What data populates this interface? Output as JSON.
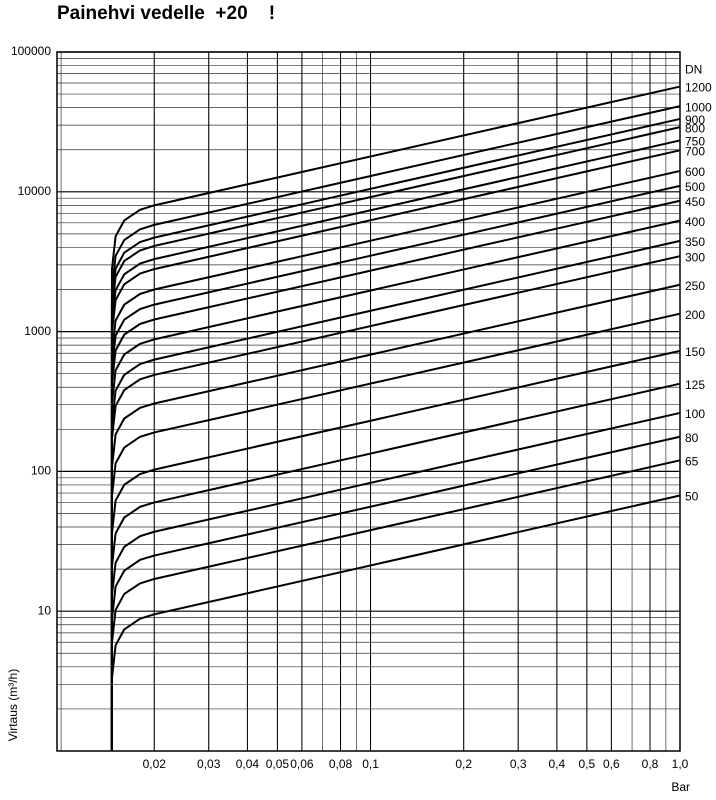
{
  "chart_data": {
    "type": "line",
    "title": "Painehvi vedelle  +20    !",
    "y_label": "Virtaus (m³/h)",
    "x_label": "Bar",
    "legend_title": "DN",
    "log_x": true,
    "log_y": true,
    "minor_grid": true,
    "xlim": [
      0.0097,
      1.0
    ],
    "ylim": [
      1,
      100000
    ],
    "yticks": [
      10,
      100,
      1000,
      10000,
      100000
    ],
    "xticks": [
      {
        "value": 0.02,
        "label": "0,02"
      },
      {
        "value": 0.03,
        "label": "0,03"
      },
      {
        "value": 0.04,
        "label": "0,04"
      },
      {
        "value": 0.05,
        "label": "0,05"
      },
      {
        "value": 0.06,
        "label": "0,06"
      },
      {
        "value": 0.08,
        "label": "0,08"
      },
      {
        "value": 0.1,
        "label": "0,1"
      },
      {
        "value": 0.2,
        "label": "0,2"
      },
      {
        "value": 0.3,
        "label": "0,3"
      },
      {
        "value": 0.4,
        "label": "0,4"
      },
      {
        "value": 0.5,
        "label": "0,5"
      },
      {
        "value": 0.6,
        "label": "0,6"
      },
      {
        "value": 0.8,
        "label": "0,8"
      },
      {
        "value": 1.0,
        "label": "1,0"
      }
    ],
    "x": [
      0.0146,
      0.0146,
      0.015,
      0.016,
      0.018,
      0.02,
      1.0
    ],
    "series": [
      {
        "name": "1200",
        "color": "#000000",
        "values": [
          1,
          2800,
          4800,
          6240,
          7440,
          8000,
          56600
        ]
      },
      {
        "name": "1000",
        "color": "#000000",
        "values": [
          1,
          2030,
          3480,
          4520,
          5390,
          5800,
          41000
        ]
      },
      {
        "name": "900",
        "color": "#000000",
        "values": [
          1,
          1650,
          2820,
          3670,
          4370,
          4700,
          33200
        ]
      },
      {
        "name": "800",
        "color": "#000000",
        "values": [
          1,
          1440,
          2460,
          3200,
          3810,
          4100,
          29000
        ]
      },
      {
        "name": "750",
        "color": "#000000",
        "values": [
          1,
          1160,
          1980,
          2570,
          3070,
          3300,
          23300
        ]
      },
      {
        "name": "700",
        "color": "#000000",
        "values": [
          1,
          980,
          1680,
          2180,
          2600,
          2800,
          19800
        ]
      },
      {
        "name": "600",
        "color": "#000000",
        "values": [
          1,
          700,
          1200,
          1560,
          1860,
          2000,
          14100
        ]
      },
      {
        "name": "500",
        "color": "#000000",
        "values": [
          1,
          546,
          936,
          1217,
          1451,
          1560,
          11030
        ]
      },
      {
        "name": "450",
        "color": "#000000",
        "values": [
          1,
          427,
          732,
          952,
          1135,
          1220,
          8625
        ]
      },
      {
        "name": "400",
        "color": "#000000",
        "values": [
          1,
          308,
          528,
          686,
          818,
          880,
          6222
        ]
      },
      {
        "name": "350",
        "color": "#000000",
        "values": [
          1,
          221,
          378,
          491,
          586,
          630,
          4454
        ]
      },
      {
        "name": "300",
        "color": "#000000",
        "values": [
          1,
          172,
          294,
          382,
          456,
          490,
          3464
        ]
      },
      {
        "name": "250",
        "color": "#000000",
        "values": [
          1,
          107,
          184,
          239,
          285,
          306,
          2163
        ]
      },
      {
        "name": "200",
        "color": "#000000",
        "values": [
          1,
          66.5,
          114,
          148,
          177,
          190,
          1343
        ]
      },
      {
        "name": "150",
        "color": "#000000",
        "values": [
          1,
          36,
          61.8,
          80.3,
          95.8,
          103,
          728
        ]
      },
      {
        "name": "125",
        "color": "#000000",
        "values": [
          1,
          21,
          36,
          46.8,
          55.8,
          60,
          424
        ]
      },
      {
        "name": "100",
        "color": "#000000",
        "values": [
          1,
          13,
          22.2,
          28.9,
          34.4,
          37,
          262
        ]
      },
      {
        "name": "80",
        "color": "#000000",
        "values": [
          1,
          8.75,
          15,
          19.5,
          23.3,
          25,
          177
        ]
      },
      {
        "name": "65",
        "color": "#000000",
        "values": [
          1,
          5.95,
          10.2,
          13.3,
          15.8,
          17,
          120
        ]
      },
      {
        "name": "50",
        "color": "#000000",
        "values": [
          1,
          3.33,
          5.7,
          7.41,
          8.84,
          9.5,
          67.2
        ]
      }
    ]
  }
}
